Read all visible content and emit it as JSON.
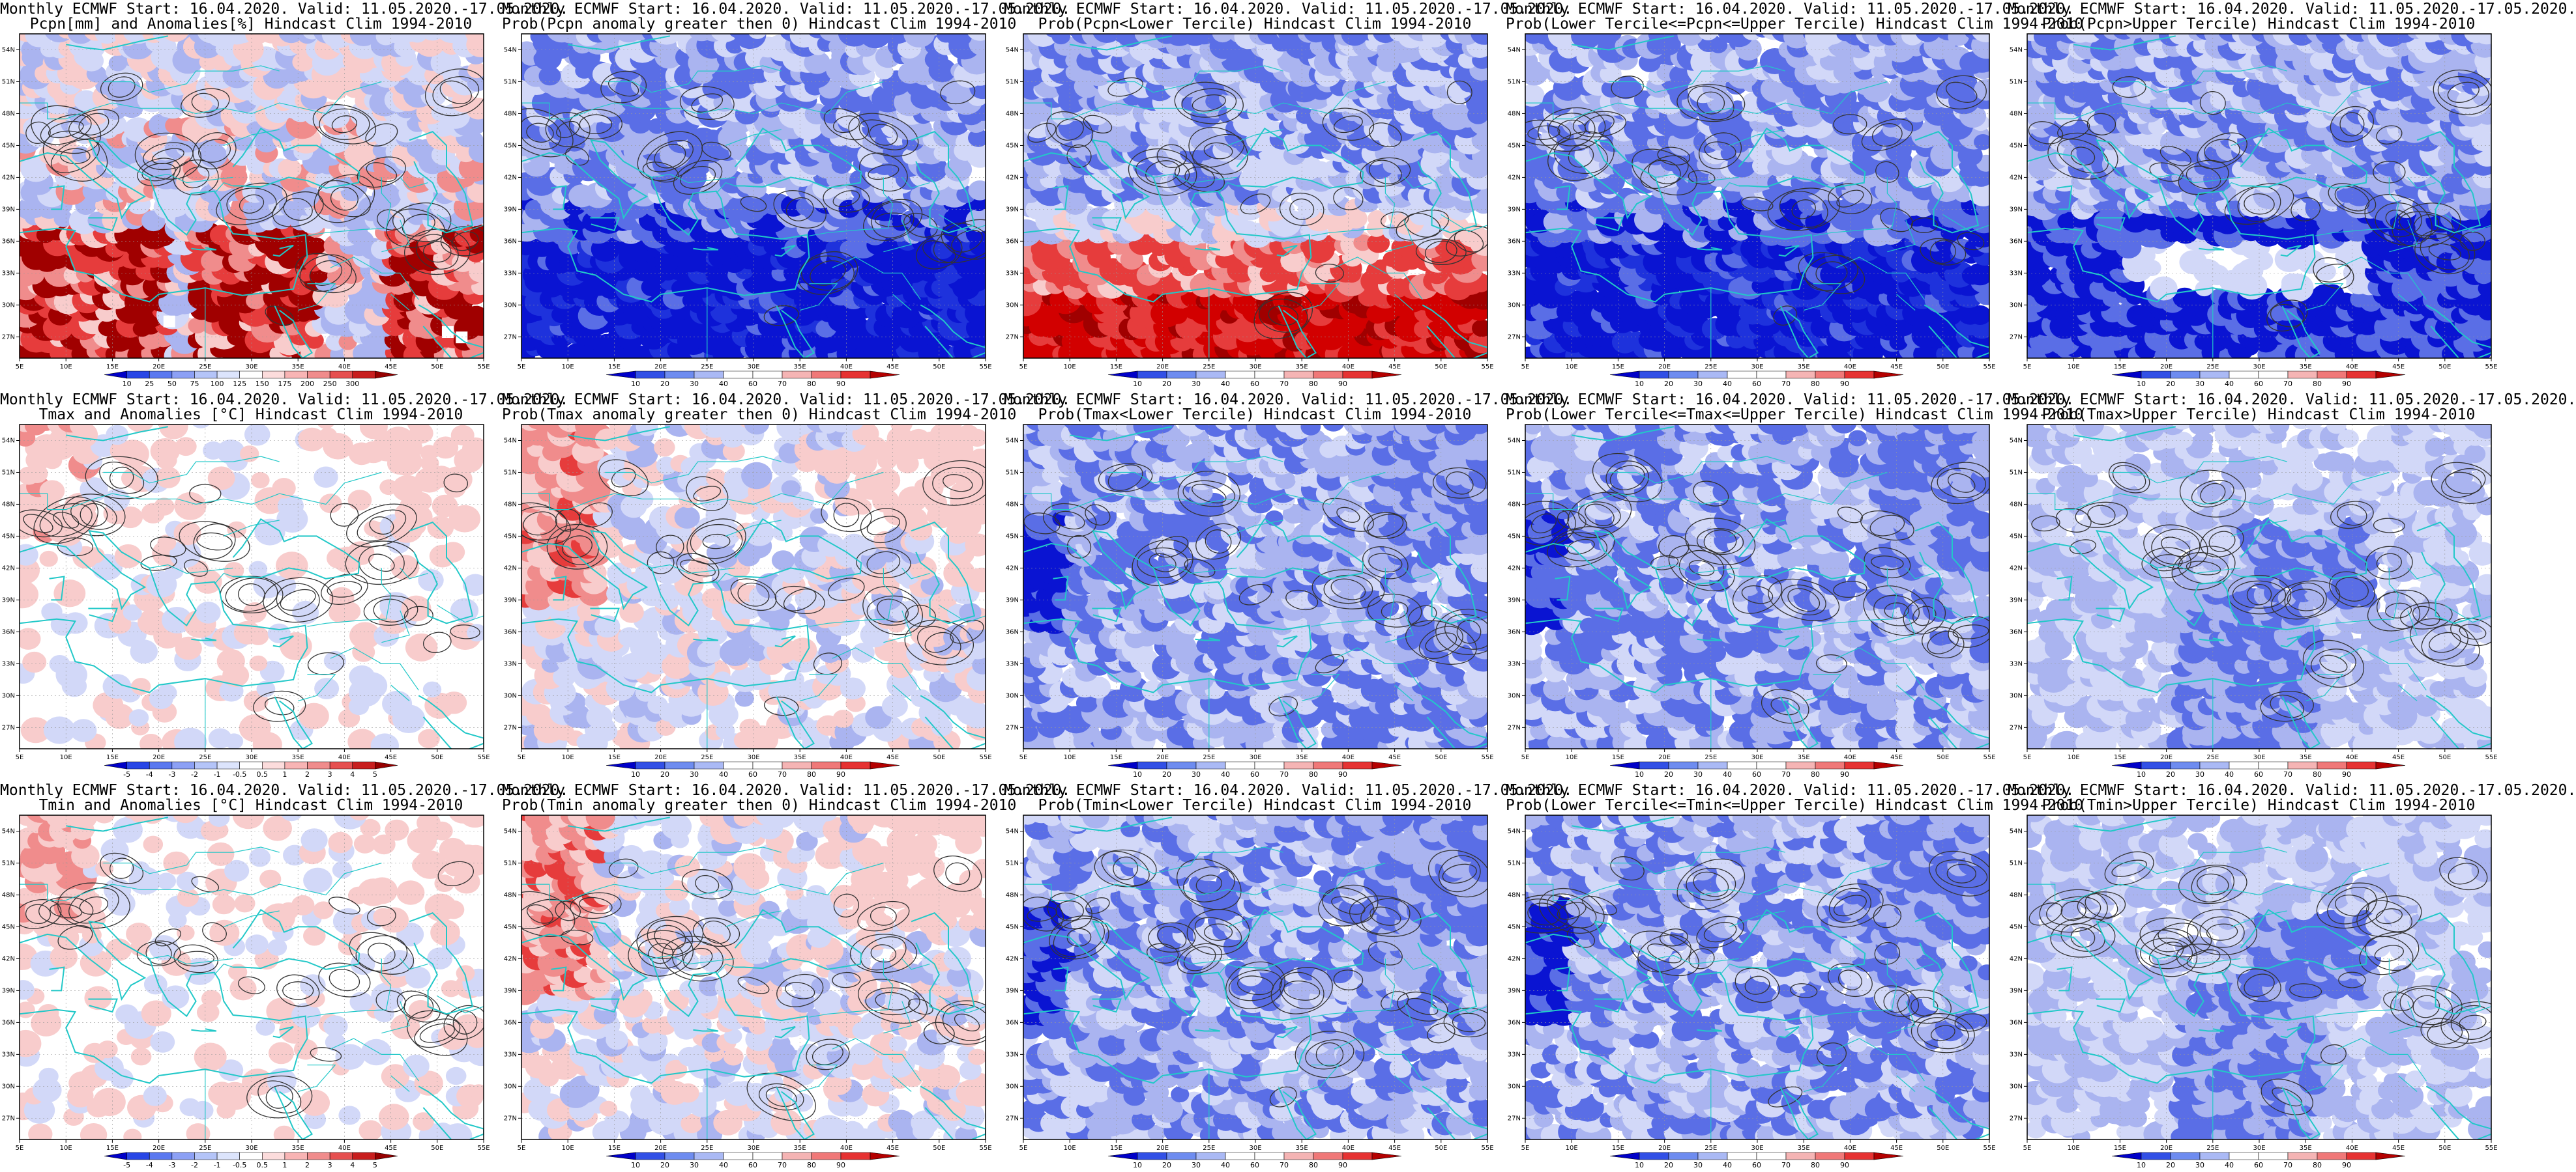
{
  "panels": [
    {
      "title1": "Monthly ECMWF Start: 16.04.2020. Valid: 11.05.2020.-17.05.2020.",
      "title2": "Pcpn[mm] and Anomalies[%] Hindcast Clim 1994-2010",
      "scheme": "pcpn_anom",
      "colorbar": [
        "10",
        "25",
        "50",
        "75",
        "100",
        "125",
        "150",
        "175",
        "200",
        "250",
        "300"
      ]
    },
    {
      "title1": "Monthly ECMWF Start: 16.04.2020. Valid: 11.05.2020.-17.05.2020.",
      "title2": "Prob(Pcpn anomaly greater then 0) Hindcast Clim 1994-2010",
      "scheme": "deep_blue",
      "colorbar": [
        "10",
        "20",
        "30",
        "40",
        "60",
        "70",
        "80",
        "90"
      ]
    },
    {
      "title1": "Monthly ECMWF Start: 16.04.2020. Valid: 11.05.2020.-17.05.2020.",
      "title2": "Prob(Pcpn<Lower Tercile) Hindcast Clim 1994-2010",
      "scheme": "red_south",
      "colorbar": [
        "10",
        "20",
        "30",
        "40",
        "60",
        "70",
        "80",
        "90"
      ]
    },
    {
      "title1": "Monthly ECMWF Start: 16.04.2020. Valid: 11.05.2020.-17.05.2020.",
      "title2": "Prob(Lower Tercile<=Pcpn<=Upper Tercile) Hindcast Clim 1994-2010",
      "scheme": "deep_blue",
      "colorbar": [
        "10",
        "20",
        "30",
        "40",
        "60",
        "70",
        "80",
        "90"
      ]
    },
    {
      "title1": "Monthly ECMWF Start: 16.04.2020. Valid: 11.05.2020.-17.05.2020.",
      "title2": "Prob(Pcpn>Upper Tercile) Hindcast Clim 1994-2010",
      "scheme": "blue_white_band",
      "colorbar": [
        "10",
        "20",
        "30",
        "40",
        "60",
        "70",
        "80",
        "90"
      ]
    },
    {
      "title1": "Monthly ECMWF Start: 16.04.2020. Valid: 11.05.2020.-17.05.2020.",
      "title2": "Tmax and Anomalies [°C] Hindcast Clim 1994-2010",
      "scheme": "anom_light",
      "colorbar": [
        "-5",
        "-4",
        "-3",
        "-2",
        "-1",
        "-0.5",
        "0.5",
        "1",
        "2",
        "3",
        "4",
        "5"
      ]
    },
    {
      "title1": "Monthly ECMWF Start: 16.04.2020. Valid: 11.05.2020.-17.05.2020.",
      "title2": "Prob(Tmax anomaly greater then 0) Hindcast Clim 1994-2010",
      "scheme": "prob_mixed",
      "colorbar": [
        "10",
        "20",
        "30",
        "40",
        "60",
        "70",
        "80",
        "90"
      ]
    },
    {
      "title1": "Monthly ECMWF Start: 16.04.2020. Valid: 11.05.2020.-17.05.2020.",
      "title2": "Prob(Tmax<Lower Tercile) Hindcast Clim 1994-2010",
      "scheme": "blue_mid",
      "colorbar": [
        "10",
        "20",
        "30",
        "40",
        "60",
        "70",
        "80",
        "90"
      ]
    },
    {
      "title1": "Monthly ECMWF Start: 16.04.2020. Valid: 11.05.2020.-17.05.2020.",
      "title2": "Prob(Lower Tercile<=Tmax<=Upper Tercile) Hindcast Clim 1994-2010",
      "scheme": "blue_mid",
      "colorbar": [
        "10",
        "20",
        "30",
        "40",
        "60",
        "70",
        "80",
        "90"
      ]
    },
    {
      "title1": "Monthly ECMWF Start: 16.04.2020. Valid: 11.05.2020.-17.05.2020.",
      "title2": "Prob(Tmax>Upper Tercile) Hindcast Clim 1994-2010",
      "scheme": "blue_light",
      "colorbar": [
        "10",
        "20",
        "30",
        "40",
        "60",
        "70",
        "80",
        "90"
      ]
    },
    {
      "title1": "Monthly ECMWF Start: 16.04.2020. Valid: 11.05.2020.-17.05.2020.",
      "title2": "Tmin and Anomalies [°C] Hindcast Clim 1994-2010",
      "scheme": "anom_light",
      "colorbar": [
        "-5",
        "-4",
        "-3",
        "-2",
        "-1",
        "-0.5",
        "0.5",
        "1",
        "2",
        "3",
        "4",
        "5"
      ]
    },
    {
      "title1": "Monthly ECMWF Start: 16.04.2020. Valid: 11.05.2020.-17.05.2020.",
      "title2": "Prob(Tmin anomaly greater then 0) Hindcast Clim 1994-2010",
      "scheme": "prob_mixed",
      "colorbar": [
        "10",
        "20",
        "30",
        "40",
        "60",
        "70",
        "80",
        "90"
      ]
    },
    {
      "title1": "Monthly ECMWF Start: 16.04.2020. Valid: 11.05.2020.-17.05.2020.",
      "title2": "Prob(Tmin<Lower Tercile) Hindcast Clim 1994-2010",
      "scheme": "blue_mid",
      "colorbar": [
        "10",
        "20",
        "30",
        "40",
        "60",
        "70",
        "80",
        "90"
      ]
    },
    {
      "title1": "Monthly ECMWF Start: 16.04.2020. Valid: 11.05.2020.-17.05.2020.",
      "title2": "Prob(Lower Tercile<=Tmin<=Upper Tercile) Hindcast Clim 1994-2010",
      "scheme": "blue_mid",
      "colorbar": [
        "10",
        "20",
        "30",
        "40",
        "60",
        "70",
        "80",
        "90"
      ]
    },
    {
      "title1": "Monthly ECMWF Start: 16.04.2020. Valid: 11.05.2020.-17.05.2020.",
      "title2": "Prob(Tmin>Upper Tercile) Hindcast Clim 1994-2010",
      "scheme": "blue_light",
      "colorbar": [
        "10",
        "20",
        "30",
        "40",
        "60",
        "70",
        "80",
        "90"
      ]
    }
  ],
  "lon_labels": [
    "5E",
    "10E",
    "15E",
    "20E",
    "25E",
    "30E",
    "35E",
    "40E",
    "45E",
    "50E",
    "55E"
  ],
  "lat_labels": [
    "54N",
    "51N",
    "48N",
    "45N",
    "42N",
    "39N",
    "36N",
    "33N",
    "30N",
    "27N"
  ],
  "colors": {
    "coastline": "#22c8c8",
    "contour": "#333333",
    "deep_blue": "#0a14d2",
    "mid_blue": "#5a6ee6",
    "light_blue": "#aab4f0",
    "pale_blue": "#d2d8f8",
    "pale_red": "#f8cccc",
    "light_red": "#f08c8c",
    "mid_red": "#e63c3c",
    "dark_red": "#a00000"
  }
}
